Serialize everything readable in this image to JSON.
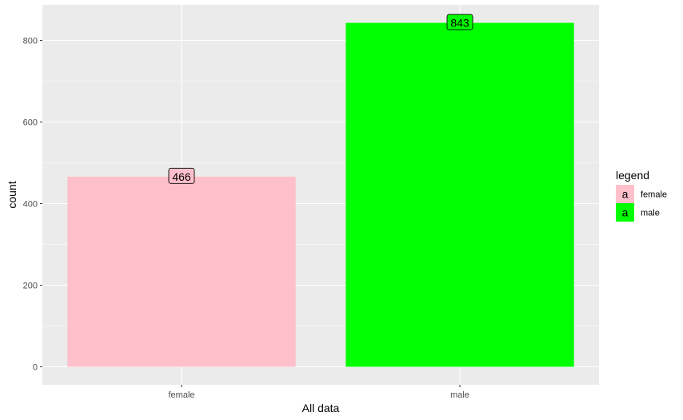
{
  "chart_data": {
    "type": "bar",
    "categories": [
      "female",
      "male"
    ],
    "values": [
      466,
      843
    ],
    "colors": [
      "#ffc0cb",
      "#00ff00"
    ],
    "data_labels": [
      "466",
      "843"
    ],
    "xlabel": "All data",
    "ylabel": "count",
    "ylim": [
      0,
      900
    ],
    "yticks": [
      0,
      200,
      400,
      600,
      800
    ],
    "ytick_labels": [
      "0",
      "200",
      "400",
      "600",
      "800"
    ],
    "grid": true,
    "panel_background": "#ebebeb",
    "legend": {
      "title": "legend",
      "position": "right",
      "entries": [
        {
          "label": "female",
          "color": "#ffc0cb",
          "key_glyph": "a"
        },
        {
          "label": "male",
          "color": "#00ff00",
          "key_glyph": "a"
        }
      ]
    }
  }
}
